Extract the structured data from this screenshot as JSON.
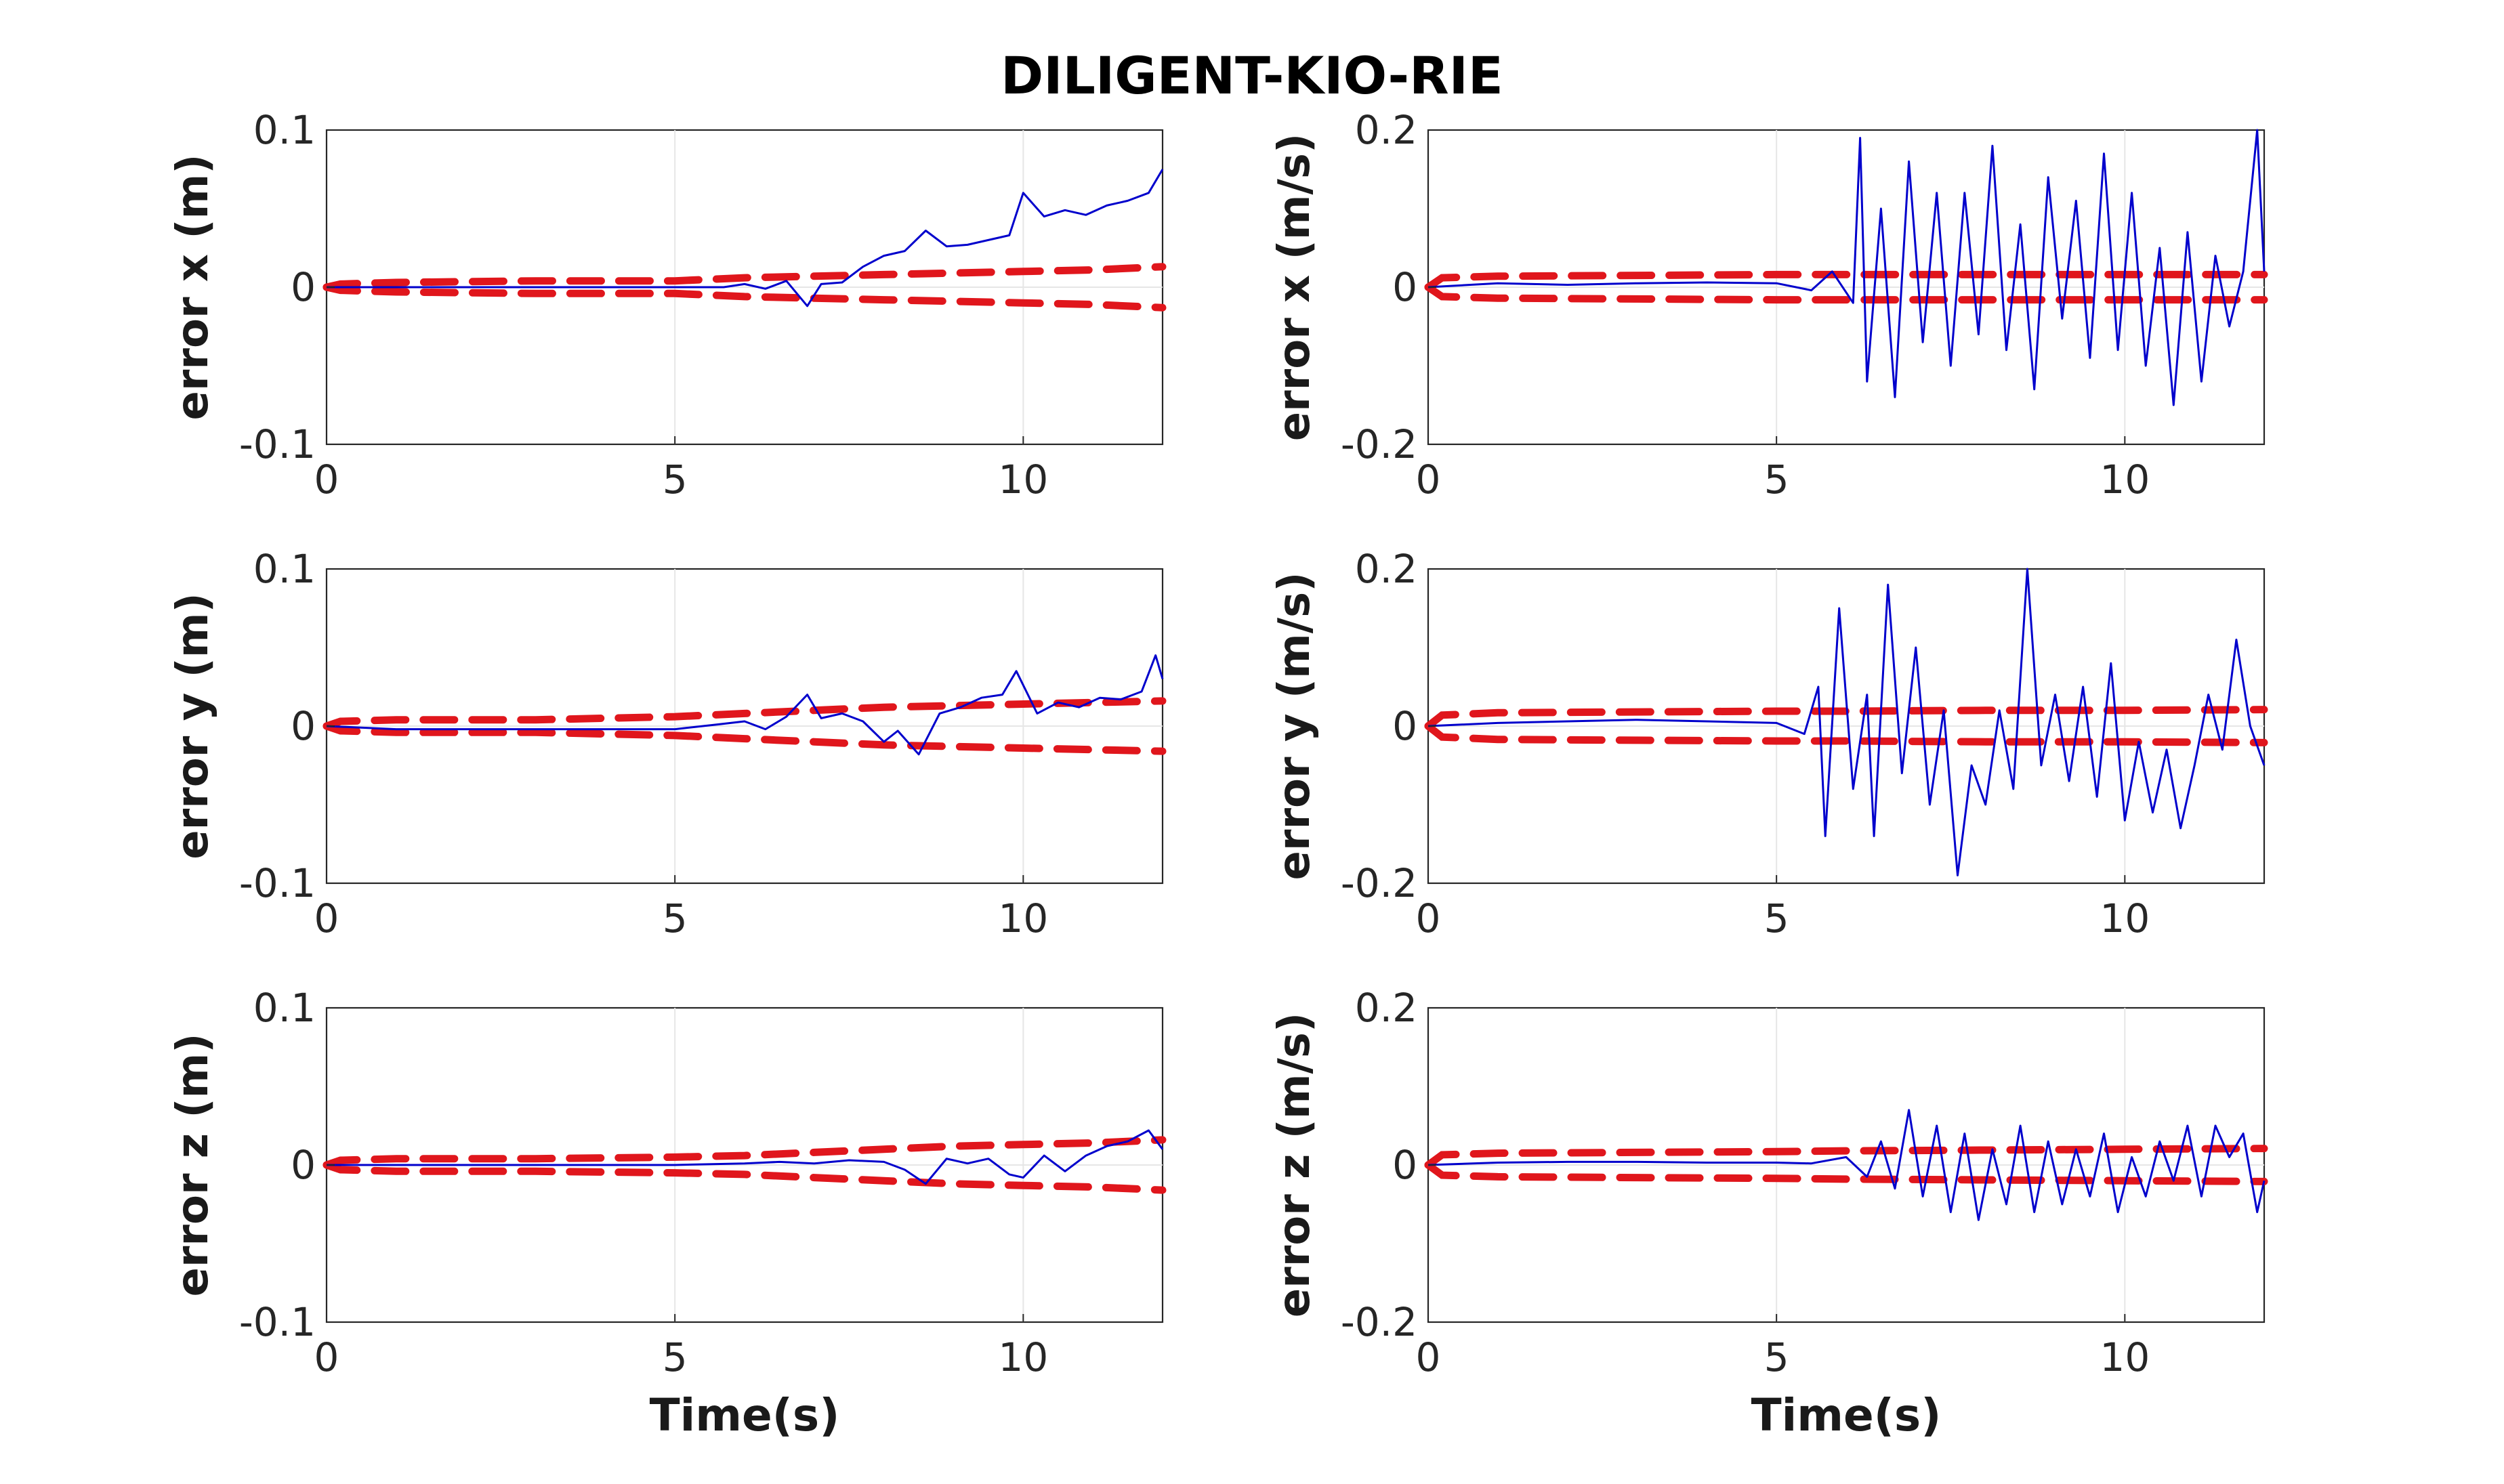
{
  "figure_title": "DILIGENT-KIO-RIE",
  "colors": {
    "estimate_error": "#0000cc",
    "bound": "#e0161c"
  },
  "chart_data": [
    {
      "type": "line",
      "ylabel": "error x (m)",
      "xlabel": "",
      "xlim": [
        0,
        12
      ],
      "ylim": [
        -0.1,
        0.1
      ],
      "xticks": [
        "0",
        "5",
        "10"
      ],
      "yticks": [
        "-0.1",
        "0",
        "0.1"
      ],
      "grid": true,
      "error_points": [
        [
          0,
          0
        ],
        [
          1,
          0
        ],
        [
          2,
          0
        ],
        [
          3,
          0
        ],
        [
          4,
          0
        ],
        [
          5,
          0
        ],
        [
          5.7,
          0
        ],
        [
          6.0,
          0.002
        ],
        [
          6.3,
          -0.001
        ],
        [
          6.6,
          0.004
        ],
        [
          6.9,
          -0.012
        ],
        [
          7.1,
          0.002
        ],
        [
          7.4,
          0.003
        ],
        [
          7.7,
          0.013
        ],
        [
          8.0,
          0.02
        ],
        [
          8.3,
          0.023
        ],
        [
          8.6,
          0.036
        ],
        [
          8.9,
          0.026
        ],
        [
          9.2,
          0.027
        ],
        [
          9.5,
          0.03
        ],
        [
          9.8,
          0.033
        ],
        [
          10.0,
          0.06
        ],
        [
          10.3,
          0.045
        ],
        [
          10.6,
          0.049
        ],
        [
          10.9,
          0.046
        ],
        [
          11.2,
          0.052
        ],
        [
          11.5,
          0.055
        ],
        [
          11.8,
          0.06
        ],
        [
          12.0,
          0.075
        ]
      ],
      "bound_points": [
        [
          0,
          0
        ],
        [
          0.2,
          0.002
        ],
        [
          1,
          0.003
        ],
        [
          3,
          0.004
        ],
        [
          5,
          0.004
        ],
        [
          6,
          0.006
        ],
        [
          7,
          0.007
        ],
        [
          8,
          0.008
        ],
        [
          9,
          0.009
        ],
        [
          10,
          0.01
        ],
        [
          11,
          0.011
        ],
        [
          12,
          0.013
        ]
      ]
    },
    {
      "type": "line",
      "ylabel": "error x (m/s)",
      "xlabel": "",
      "xlim": [
        0,
        12
      ],
      "ylim": [
        -0.2,
        0.2
      ],
      "xticks": [
        "0",
        "5",
        "10"
      ],
      "yticks": [
        "-0.2",
        "0",
        "0.2"
      ],
      "grid": true,
      "error_points": [
        [
          0,
          0
        ],
        [
          1,
          0.005
        ],
        [
          2,
          0.003
        ],
        [
          3,
          0.005
        ],
        [
          4,
          0.006
        ],
        [
          5,
          0.005
        ],
        [
          5.5,
          -0.004
        ],
        [
          5.8,
          0.02
        ],
        [
          6.1,
          -0.02
        ],
        [
          6.2,
          0.19
        ],
        [
          6.3,
          -0.12
        ],
        [
          6.5,
          0.1
        ],
        [
          6.7,
          -0.14
        ],
        [
          6.9,
          0.16
        ],
        [
          7.1,
          -0.07
        ],
        [
          7.3,
          0.12
        ],
        [
          7.5,
          -0.1
        ],
        [
          7.7,
          0.12
        ],
        [
          7.9,
          -0.06
        ],
        [
          8.1,
          0.18
        ],
        [
          8.3,
          -0.08
        ],
        [
          8.5,
          0.08
        ],
        [
          8.7,
          -0.13
        ],
        [
          8.9,
          0.14
        ],
        [
          9.1,
          -0.04
        ],
        [
          9.3,
          0.11
        ],
        [
          9.5,
          -0.09
        ],
        [
          9.7,
          0.17
        ],
        [
          9.9,
          -0.08
        ],
        [
          10.1,
          0.12
        ],
        [
          10.3,
          -0.1
        ],
        [
          10.5,
          0.05
        ],
        [
          10.7,
          -0.15
        ],
        [
          10.9,
          0.07
        ],
        [
          11.1,
          -0.12
        ],
        [
          11.3,
          0.04
        ],
        [
          11.5,
          -0.05
        ],
        [
          11.7,
          0.02
        ],
        [
          11.9,
          0.2
        ],
        [
          12.0,
          0.02
        ]
      ],
      "bound_points": [
        [
          0,
          0
        ],
        [
          0.2,
          0.012
        ],
        [
          1,
          0.014
        ],
        [
          3,
          0.015
        ],
        [
          5,
          0.016
        ],
        [
          6,
          0.016
        ],
        [
          8,
          0.016
        ],
        [
          10,
          0.016
        ],
        [
          12,
          0.016
        ]
      ]
    },
    {
      "type": "line",
      "ylabel": "error y (m)",
      "xlabel": "",
      "xlim": [
        0,
        12
      ],
      "ylim": [
        -0.1,
        0.1
      ],
      "xticks": [
        "0",
        "5",
        "10"
      ],
      "yticks": [
        "-0.1",
        "0",
        "0.1"
      ],
      "grid": true,
      "error_points": [
        [
          0,
          0
        ],
        [
          1,
          -0.002
        ],
        [
          2,
          -0.002
        ],
        [
          3,
          -0.002
        ],
        [
          4,
          -0.002
        ],
        [
          5,
          -0.002
        ],
        [
          5.6,
          0.001
        ],
        [
          6.0,
          0.003
        ],
        [
          6.3,
          -0.002
        ],
        [
          6.6,
          0.006
        ],
        [
          6.9,
          0.02
        ],
        [
          7.1,
          0.005
        ],
        [
          7.4,
          0.008
        ],
        [
          7.7,
          0.003
        ],
        [
          8.0,
          -0.01
        ],
        [
          8.2,
          -0.003
        ],
        [
          8.5,
          -0.018
        ],
        [
          8.8,
          0.008
        ],
        [
          9.1,
          0.012
        ],
        [
          9.4,
          0.018
        ],
        [
          9.7,
          0.02
        ],
        [
          9.9,
          0.035
        ],
        [
          10.2,
          0.008
        ],
        [
          10.5,
          0.015
        ],
        [
          10.8,
          0.012
        ],
        [
          11.1,
          0.018
        ],
        [
          11.4,
          0.017
        ],
        [
          11.7,
          0.022
        ],
        [
          11.9,
          0.045
        ],
        [
          12.0,
          0.03
        ]
      ],
      "bound_points": [
        [
          0,
          0
        ],
        [
          0.2,
          0.003
        ],
        [
          1,
          0.004
        ],
        [
          3,
          0.004
        ],
        [
          5,
          0.006
        ],
        [
          6,
          0.008
        ],
        [
          7,
          0.01
        ],
        [
          8,
          0.012
        ],
        [
          9,
          0.013
        ],
        [
          10,
          0.014
        ],
        [
          11,
          0.015
        ],
        [
          12,
          0.016
        ]
      ]
    },
    {
      "type": "line",
      "ylabel": "error y (m/s)",
      "xlabel": "",
      "xlim": [
        0,
        12
      ],
      "ylim": [
        -0.2,
        0.2
      ],
      "xticks": [
        "0",
        "5",
        "10"
      ],
      "yticks": [
        "-0.2",
        "0",
        "0.2"
      ],
      "grid": true,
      "error_points": [
        [
          0,
          0
        ],
        [
          1,
          0.004
        ],
        [
          2,
          0.006
        ],
        [
          3,
          0.008
        ],
        [
          4,
          0.006
        ],
        [
          5,
          0.004
        ],
        [
          5.4,
          -0.01
        ],
        [
          5.6,
          0.05
        ],
        [
          5.7,
          -0.14
        ],
        [
          5.9,
          0.15
        ],
        [
          6.1,
          -0.08
        ],
        [
          6.3,
          0.04
        ],
        [
          6.4,
          -0.14
        ],
        [
          6.6,
          0.18
        ],
        [
          6.8,
          -0.06
        ],
        [
          7.0,
          0.1
        ],
        [
          7.2,
          -0.1
        ],
        [
          7.4,
          0.02
        ],
        [
          7.6,
          -0.19
        ],
        [
          7.8,
          -0.05
        ],
        [
          8.0,
          -0.1
        ],
        [
          8.2,
          0.02
        ],
        [
          8.4,
          -0.08
        ],
        [
          8.6,
          0.2
        ],
        [
          8.8,
          -0.05
        ],
        [
          9.0,
          0.04
        ],
        [
          9.2,
          -0.07
        ],
        [
          9.4,
          0.05
        ],
        [
          9.6,
          -0.09
        ],
        [
          9.8,
          0.08
        ],
        [
          10.0,
          -0.12
        ],
        [
          10.2,
          -0.02
        ],
        [
          10.4,
          -0.11
        ],
        [
          10.6,
          -0.03
        ],
        [
          10.8,
          -0.13
        ],
        [
          11.0,
          -0.05
        ],
        [
          11.2,
          0.04
        ],
        [
          11.4,
          -0.03
        ],
        [
          11.6,
          0.11
        ],
        [
          11.8,
          0.0
        ],
        [
          12.0,
          -0.05
        ]
      ],
      "bound_points": [
        [
          0,
          0
        ],
        [
          0.2,
          0.014
        ],
        [
          1,
          0.017
        ],
        [
          3,
          0.018
        ],
        [
          5,
          0.019
        ],
        [
          6,
          0.019
        ],
        [
          8,
          0.02
        ],
        [
          10,
          0.02
        ],
        [
          12,
          0.021
        ]
      ]
    },
    {
      "type": "line",
      "ylabel": "error z (m)",
      "xlabel": "Time(s)",
      "xlim": [
        0,
        12
      ],
      "ylim": [
        -0.1,
        0.1
      ],
      "xticks": [
        "0",
        "5",
        "10"
      ],
      "yticks": [
        "-0.1",
        "0",
        "0.1"
      ],
      "grid": true,
      "error_points": [
        [
          0,
          0
        ],
        [
          1,
          0
        ],
        [
          2,
          0
        ],
        [
          3,
          0
        ],
        [
          4,
          0
        ],
        [
          5,
          0
        ],
        [
          6,
          0.001
        ],
        [
          6.5,
          0.002
        ],
        [
          7,
          0.001
        ],
        [
          7.5,
          0.003
        ],
        [
          8,
          0.002
        ],
        [
          8.3,
          -0.003
        ],
        [
          8.6,
          -0.012
        ],
        [
          8.9,
          0.004
        ],
        [
          9.2,
          0.001
        ],
        [
          9.5,
          0.004
        ],
        [
          9.8,
          -0.006
        ],
        [
          10.0,
          -0.008
        ],
        [
          10.3,
          0.006
        ],
        [
          10.6,
          -0.004
        ],
        [
          10.9,
          0.006
        ],
        [
          11.2,
          0.012
        ],
        [
          11.5,
          0.015
        ],
        [
          11.8,
          0.022
        ],
        [
          12.0,
          0.01
        ]
      ],
      "bound_points": [
        [
          0,
          0
        ],
        [
          0.2,
          0.003
        ],
        [
          1,
          0.004
        ],
        [
          3,
          0.004
        ],
        [
          5,
          0.005
        ],
        [
          6,
          0.006
        ],
        [
          7,
          0.008
        ],
        [
          8,
          0.01
        ],
        [
          9,
          0.012
        ],
        [
          10,
          0.013
        ],
        [
          11,
          0.014
        ],
        [
          12,
          0.016
        ]
      ]
    },
    {
      "type": "line",
      "ylabel": "error z (m/s)",
      "xlabel": "Time(s)",
      "xlim": [
        0,
        12
      ],
      "ylim": [
        -0.2,
        0.2
      ],
      "xticks": [
        "0",
        "5",
        "10"
      ],
      "yticks": [
        "-0.2",
        "0",
        "0.2"
      ],
      "grid": true,
      "error_points": [
        [
          0,
          0
        ],
        [
          1,
          0.003
        ],
        [
          2,
          0.004
        ],
        [
          3,
          0.004
        ],
        [
          4,
          0.003
        ],
        [
          5,
          0.003
        ],
        [
          5.5,
          0.002
        ],
        [
          6.0,
          0.01
        ],
        [
          6.3,
          -0.015
        ],
        [
          6.5,
          0.03
        ],
        [
          6.7,
          -0.03
        ],
        [
          6.9,
          0.07
        ],
        [
          7.1,
          -0.04
        ],
        [
          7.3,
          0.05
        ],
        [
          7.5,
          -0.06
        ],
        [
          7.7,
          0.04
        ],
        [
          7.9,
          -0.07
        ],
        [
          8.1,
          0.02
        ],
        [
          8.3,
          -0.05
        ],
        [
          8.5,
          0.05
        ],
        [
          8.7,
          -0.06
        ],
        [
          8.9,
          0.03
        ],
        [
          9.1,
          -0.05
        ],
        [
          9.3,
          0.02
        ],
        [
          9.5,
          -0.04
        ],
        [
          9.7,
          0.04
        ],
        [
          9.9,
          -0.06
        ],
        [
          10.1,
          0.01
        ],
        [
          10.3,
          -0.04
        ],
        [
          10.5,
          0.03
        ],
        [
          10.7,
          -0.02
        ],
        [
          10.9,
          0.05
        ],
        [
          11.1,
          -0.04
        ],
        [
          11.3,
          0.05
        ],
        [
          11.5,
          0.01
        ],
        [
          11.7,
          0.04
        ],
        [
          11.9,
          -0.06
        ],
        [
          12.0,
          -0.02
        ]
      ],
      "bound_points": [
        [
          0,
          0
        ],
        [
          0.2,
          0.013
        ],
        [
          1,
          0.015
        ],
        [
          3,
          0.016
        ],
        [
          5,
          0.017
        ],
        [
          6,
          0.018
        ],
        [
          8,
          0.019
        ],
        [
          10,
          0.02
        ],
        [
          12,
          0.021
        ]
      ]
    }
  ]
}
